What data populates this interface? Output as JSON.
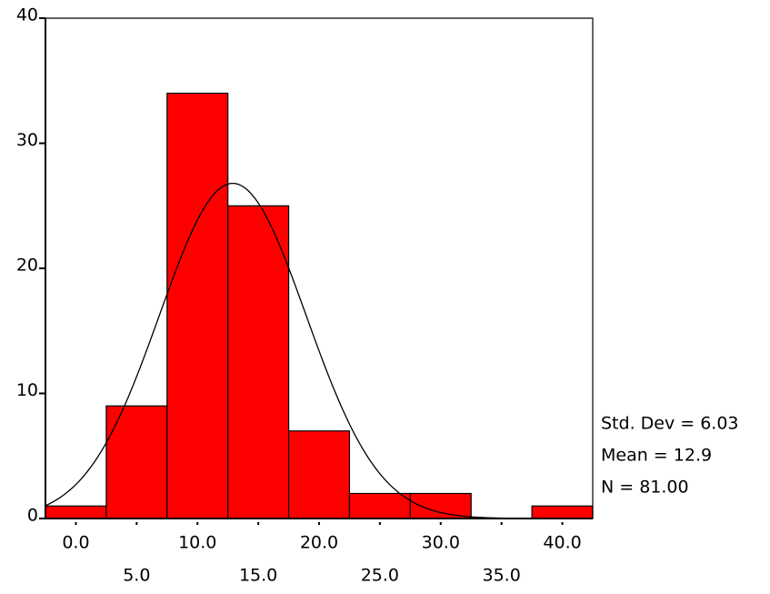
{
  "chart_data": {
    "type": "histogram",
    "bins": [
      -2.5,
      2.5,
      7.5,
      12.5,
      17.5,
      22.5,
      27.5,
      32.5,
      37.5,
      42.5
    ],
    "values": [
      1,
      9,
      34,
      25,
      7,
      2,
      2,
      0,
      1
    ],
    "color": "#ff0000",
    "xlim": [
      -2.5,
      42.5
    ],
    "ylim": [
      0,
      40
    ],
    "xticks": [
      {
        "value": 0,
        "label": "0.0"
      },
      {
        "value": 5,
        "label": "5.0"
      },
      {
        "value": 10,
        "label": "10.0"
      },
      {
        "value": 15,
        "label": "15.0"
      },
      {
        "value": 20,
        "label": "20.0"
      },
      {
        "value": 25,
        "label": "25.0"
      },
      {
        "value": 30,
        "label": "30.0"
      },
      {
        "value": 35,
        "label": "35.0"
      },
      {
        "value": 40,
        "label": "40.0"
      }
    ],
    "yticks": [
      0,
      10,
      20,
      30,
      40
    ],
    "normal_curve": {
      "mean": 12.9,
      "std_dev": 6.03,
      "n": 81
    },
    "annotations": [
      "Std. Dev = 6.03",
      "Mean = 12.9",
      "N = 81.00"
    ]
  }
}
